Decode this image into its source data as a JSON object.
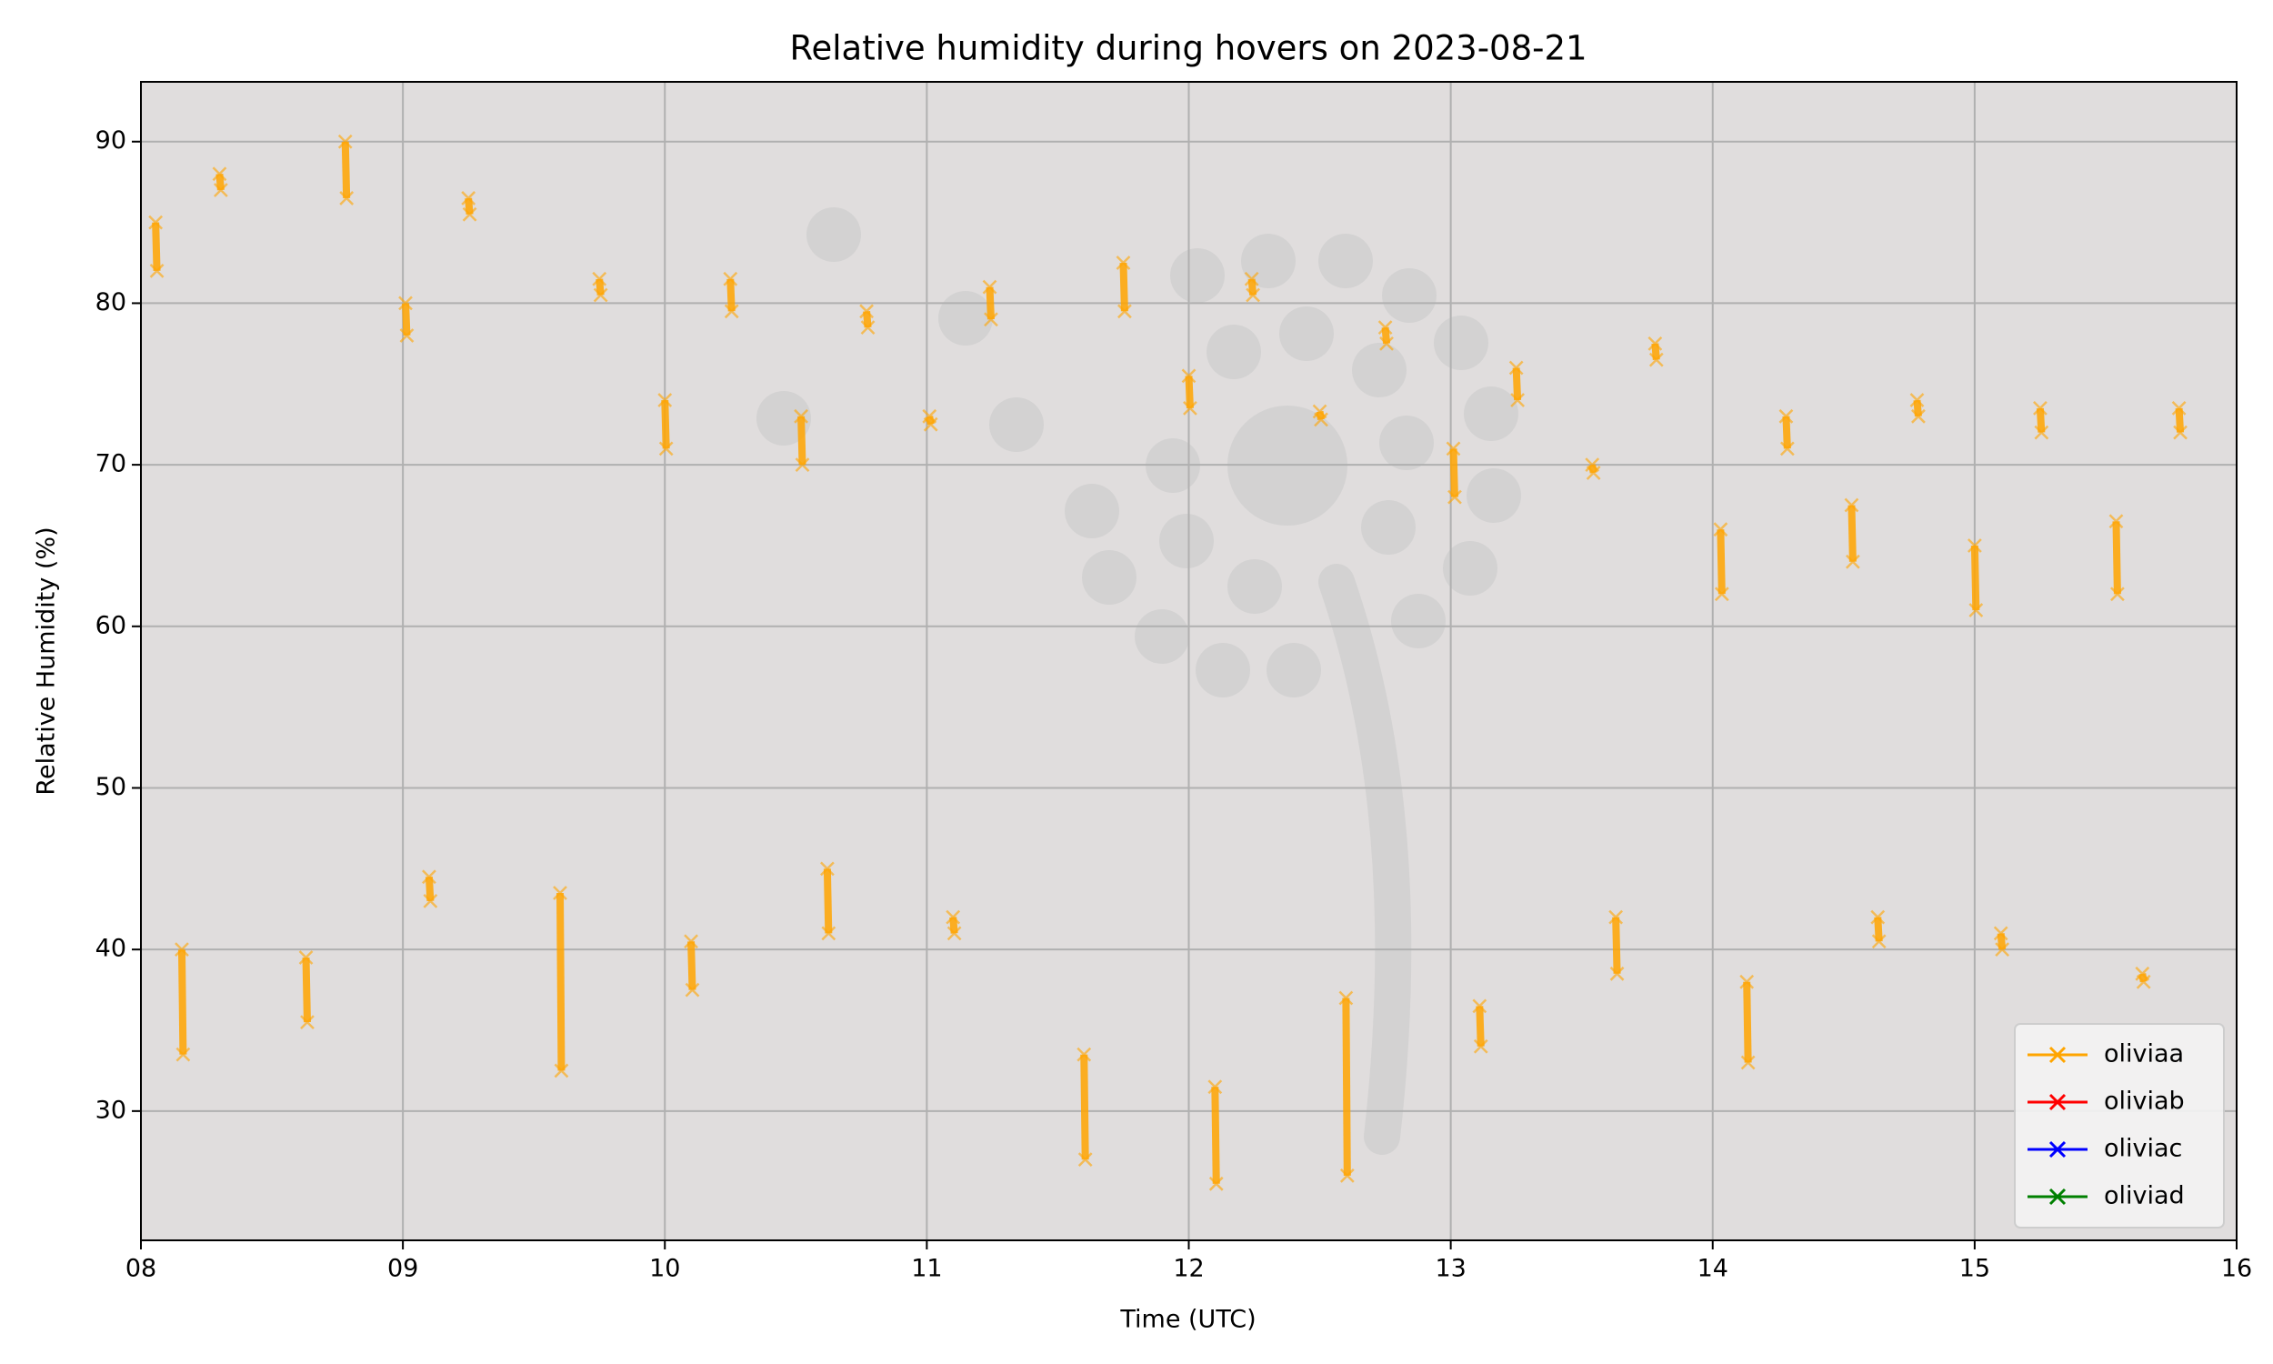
{
  "chart_data": {
    "type": "line",
    "title": "Relative humidity during hovers on 2023-08-21",
    "xlabel": "Time (UTC)",
    "ylabel": "Relative Humidity (%)",
    "xlim": [
      8,
      16
    ],
    "xticks": [
      {
        "value": 8,
        "label": "08"
      },
      {
        "value": 9,
        "label": "09"
      },
      {
        "value": 10,
        "label": "10"
      },
      {
        "value": 11,
        "label": "11"
      },
      {
        "value": 12,
        "label": "12"
      },
      {
        "value": 13,
        "label": "13"
      },
      {
        "value": 14,
        "label": "14"
      },
      {
        "value": 15,
        "label": "15"
      },
      {
        "value": 16,
        "label": "16"
      }
    ],
    "ylim": [
      22,
      93.7
    ],
    "yticks": [
      30,
      40,
      50,
      60,
      70,
      80,
      90
    ],
    "grid": true,
    "legend_loc": "lower right",
    "marker": "x",
    "series": [
      {
        "name": "oliviaa",
        "color": "#ffa500",
        "x": [
          8.056,
          8.061,
          null,
          8.156,
          8.161,
          null,
          8.3,
          8.305,
          null,
          8.63,
          8.635,
          null,
          8.78,
          8.785,
          null,
          9.01,
          9.015,
          null,
          9.1,
          9.105,
          null,
          9.25,
          9.255,
          null,
          9.6,
          9.605,
          null,
          9.75,
          9.755,
          null,
          10.0,
          10.005,
          null,
          10.1,
          10.105,
          null,
          10.25,
          10.255,
          null,
          10.52,
          10.525,
          null,
          10.62,
          10.625,
          null,
          10.77,
          10.775,
          null,
          11.01,
          11.015,
          null,
          11.1,
          11.105,
          null,
          11.24,
          11.245,
          null,
          11.6,
          11.605,
          null,
          11.75,
          11.755,
          null,
          12.0,
          12.005,
          null,
          12.1,
          12.105,
          null,
          12.24,
          12.245,
          null,
          12.5,
          12.505,
          null,
          12.6,
          12.605,
          null,
          12.75,
          12.755,
          null,
          13.01,
          13.015,
          null,
          13.11,
          13.115,
          null,
          13.25,
          13.255,
          null,
          13.54,
          13.545,
          null,
          13.63,
          13.635,
          null,
          13.78,
          13.785,
          null,
          14.03,
          14.035,
          null,
          14.13,
          14.135,
          null,
          14.28,
          14.285,
          null,
          14.53,
          14.535,
          null,
          14.63,
          14.635,
          null,
          14.78,
          14.785,
          null,
          15.0,
          15.005,
          null,
          15.1,
          15.105,
          null,
          15.25,
          15.255,
          null,
          15.54,
          15.545,
          null,
          15.64,
          15.645,
          null,
          15.78,
          15.785
        ],
        "values": [
          85,
          82,
          null,
          40,
          33.5,
          null,
          88,
          87,
          null,
          39.5,
          35.5,
          null,
          90,
          86.5,
          null,
          80,
          78,
          null,
          44.5,
          43,
          null,
          86.5,
          85.5,
          null,
          43.5,
          32.5,
          null,
          81.5,
          80.5,
          null,
          74,
          71,
          null,
          40.5,
          37.5,
          null,
          81.5,
          79.5,
          null,
          73,
          70,
          null,
          45,
          41,
          null,
          79.5,
          78.5,
          null,
          73,
          72.5,
          null,
          42,
          41,
          null,
          81,
          79,
          null,
          33.5,
          27,
          null,
          82.5,
          79.5,
          null,
          75.5,
          73.5,
          null,
          31.5,
          25.5,
          null,
          81.5,
          80.5,
          null,
          73.3,
          72.8,
          null,
          37,
          26,
          null,
          78.5,
          77.5,
          null,
          71,
          68,
          null,
          36.5,
          34,
          null,
          76,
          74,
          null,
          70,
          69.5,
          null,
          42,
          38.5,
          null,
          77.5,
          76.5,
          null,
          66,
          62,
          null,
          38,
          33,
          null,
          73,
          71,
          null,
          67.5,
          64,
          null,
          42,
          40.5,
          null,
          74,
          73,
          null,
          65,
          61,
          null,
          41,
          40,
          null,
          73.5,
          72,
          null,
          66.5,
          62,
          null,
          38.5,
          38,
          null,
          73.5,
          72
        ]
      },
      {
        "name": "oliviab",
        "color": "#ff0000",
        "x": [],
        "values": []
      },
      {
        "name": "oliviac",
        "color": "#0000ff",
        "x": [],
        "values": []
      },
      {
        "name": "oliviad",
        "color": "#008000",
        "x": [],
        "values": []
      }
    ]
  }
}
